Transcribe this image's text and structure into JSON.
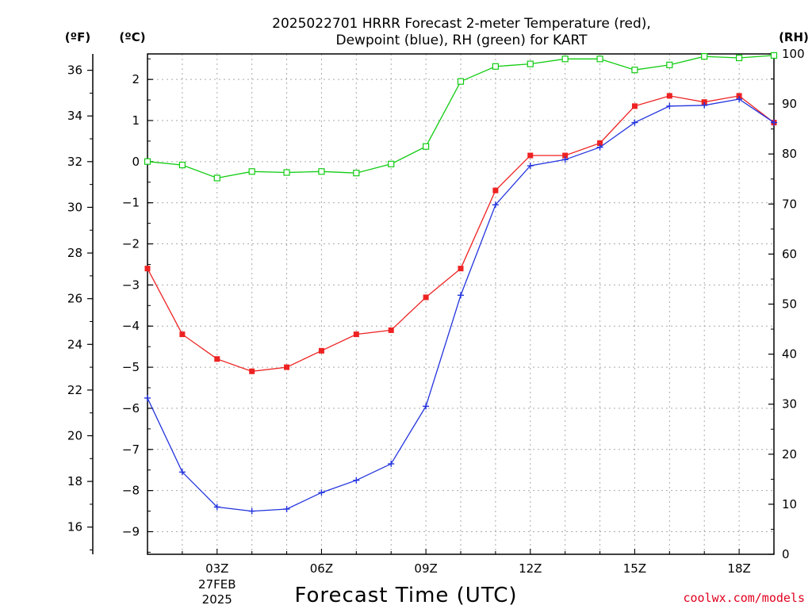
{
  "chart_data": {
    "type": "line",
    "title_lines": [
      "2025022701 HRRR Forecast 2-meter Temperature (red),",
      "Dewpoint (blue), RH (green) for KART"
    ],
    "xlabel": "Forecast Time (UTC)",
    "credit": "coolwx.com/models",
    "units": {
      "fahrenheit": "(ºF)",
      "celsius": "(ºC)",
      "rh": "(RH)"
    },
    "x_hours": [
      1,
      2,
      3,
      4,
      5,
      6,
      7,
      8,
      9,
      10,
      11,
      12,
      13,
      14,
      15,
      16,
      17,
      18,
      19
    ],
    "x_ticks": [
      {
        "hour": 3,
        "label": "03Z",
        "date_lines": [
          "27FEB",
          "2025"
        ]
      },
      {
        "hour": 6,
        "label": "06Z",
        "date_lines": []
      },
      {
        "hour": 9,
        "label": "09Z",
        "date_lines": []
      },
      {
        "hour": 12,
        "label": "12Z",
        "date_lines": []
      },
      {
        "hour": 15,
        "label": "15Z",
        "date_lines": []
      },
      {
        "hour": 18,
        "label": "18Z",
        "date_lines": []
      }
    ],
    "x_range": [
      1,
      19
    ],
    "celsius_range": [
      -9.55,
      2.62
    ],
    "celsius_ticks": [
      -9,
      -8,
      -7,
      -6,
      -5,
      -4,
      -3,
      -2,
      -1,
      0,
      1,
      2
    ],
    "celsius_tick_labels": [
      "−9",
      "−8",
      "−7",
      "−6",
      "−5",
      "−4",
      "−3",
      "−2",
      "−1",
      "0",
      "1",
      "2"
    ],
    "fahrenheit_ticks": [
      16,
      18,
      20,
      22,
      24,
      26,
      28,
      30,
      32,
      34,
      36
    ],
    "rh_range": [
      0,
      100
    ],
    "rh_ticks": [
      0,
      10,
      20,
      30,
      40,
      50,
      60,
      70,
      80,
      90,
      100
    ],
    "grid": true,
    "series": [
      {
        "name": "Temperature",
        "axis": "celsius",
        "color": "#ee2222",
        "marker": "filled-square",
        "values": [
          -2.6,
          -4.2,
          -4.8,
          -5.1,
          -5.0,
          -4.6,
          -4.2,
          -4.1,
          -3.3,
          -2.6,
          -0.7,
          0.15,
          0.15,
          0.45,
          1.35,
          1.6,
          1.45,
          1.6,
          0.95
        ]
      },
      {
        "name": "Dewpoint",
        "axis": "celsius",
        "color": "#2233dd",
        "marker": "plus",
        "values": [
          -5.75,
          -7.55,
          -8.4,
          -8.5,
          -8.45,
          -8.05,
          -7.75,
          -7.35,
          -5.95,
          -3.25,
          -1.05,
          -0.1,
          0.05,
          0.35,
          0.95,
          1.35,
          1.37,
          1.52,
          0.95
        ]
      },
      {
        "name": "RH",
        "axis": "rh",
        "color": "#11cc11",
        "marker": "open-square",
        "values": [
          78.5,
          77.8,
          75.2,
          76.5,
          76.3,
          76.5,
          76.2,
          78.0,
          81.5,
          94.5,
          97.5,
          98.0,
          99.0,
          99.0,
          96.8,
          97.8,
          99.5,
          99.2,
          99.7
        ]
      }
    ]
  }
}
